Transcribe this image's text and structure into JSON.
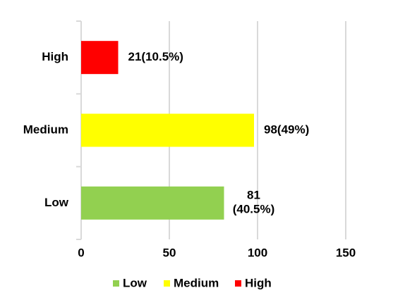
{
  "chart_data": {
    "type": "barh",
    "categories": [
      "Low",
      "Medium",
      "High"
    ],
    "values": [
      81,
      98,
      21
    ],
    "value_labels": [
      "81\n(40.5%)",
      "98(49%)",
      "21(10.5%)"
    ],
    "colors": [
      "#92d050",
      "#ffff00",
      "#ff0000"
    ],
    "xlim": [
      0,
      150
    ],
    "xticks": [
      0,
      50,
      100,
      150
    ],
    "grid": true,
    "legend": "bottom"
  }
}
